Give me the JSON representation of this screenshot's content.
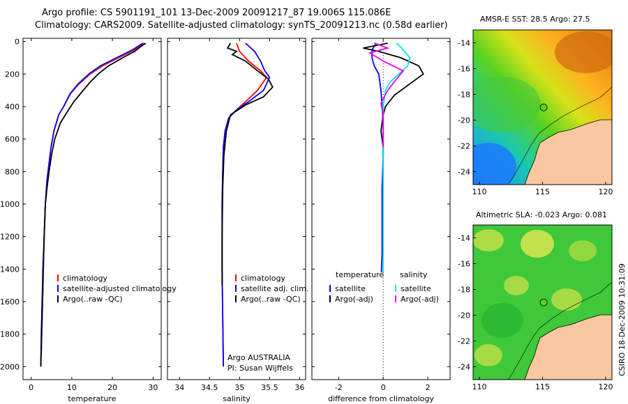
{
  "header": {
    "title_line1": "Argo profile: CS 5901191_101 13-Dec-2009 20091217_87 19.006S 115.086E",
    "title_line2": "Climatology: CARS2009. Satellite-adjusted climatology: synTS_20091213.nc (0.58d earlier)"
  },
  "stamp": "CSIRO 18-Dec-2009 10:31:09",
  "colors": {
    "climatology": "#ff0000",
    "satellite": "#0000ff",
    "argo": "#000000",
    "satellite_salinity": "#00e5ee",
    "argo_salinity": "#ee00ee",
    "land": "#f9c7a0"
  },
  "chart_data": [
    {
      "type": "line",
      "name": "temperature-profile",
      "xlabel": "temperature",
      "ylabel": "",
      "xlim": [
        -2,
        32
      ],
      "ylim": [
        2080,
        -20
      ],
      "xticks": [
        0,
        10,
        20,
        30
      ],
      "yticks": [
        0,
        200,
        400,
        600,
        800,
        1000,
        1200,
        1400,
        1600,
        1800,
        2000
      ],
      "legend": [
        "climatology",
        "satellite-adjusted climatology",
        "Argo(..raw -QC)"
      ],
      "series": [
        {
          "name": "climatology",
          "color": "#ff0000",
          "x": [
            27.8,
            25.5,
            21.5,
            17.5,
            14.5,
            11.8,
            9.7,
            8.0,
            6.8,
            5.6,
            4.9,
            4.4,
            3.9,
            3.5,
            3.2,
            3.0,
            2.8,
            2.6,
            2.5,
            2.4,
            2.4
          ],
          "y": [
            10,
            50,
            100,
            150,
            200,
            260,
            320,
            400,
            450,
            550,
            650,
            750,
            850,
            1000,
            1200,
            1400,
            1600,
            1800,
            1900,
            1950,
            2000
          ]
        },
        {
          "name": "satellite-adjusted climatology",
          "color": "#0000ff",
          "x": [
            27.5,
            25.0,
            21.0,
            17.0,
            14.2,
            11.6,
            9.6,
            8.0,
            6.8,
            5.6,
            4.9,
            4.4,
            3.9,
            3.5,
            3.2,
            3.0,
            2.8,
            2.6,
            2.5,
            2.4,
            2.4
          ],
          "y": [
            10,
            50,
            100,
            150,
            200,
            260,
            320,
            400,
            450,
            550,
            650,
            750,
            850,
            1000,
            1200,
            1400,
            1600,
            1800,
            1900,
            1950,
            2000
          ]
        },
        {
          "name": "Argo(..raw -QC)",
          "color": "#000000",
          "x": [
            28.2,
            27.0,
            25.5,
            22.5,
            19.0,
            16.5,
            14.5,
            12.5,
            10.5,
            9.2,
            7.2,
            5.8,
            5.0,
            4.4,
            3.9,
            3.5,
            3.2,
            2.9,
            2.7,
            2.5,
            2.4
          ],
          "y": [
            10,
            30,
            60,
            100,
            150,
            200,
            250,
            310,
            370,
            420,
            500,
            600,
            700,
            800,
            900,
            1000,
            1200,
            1400,
            1600,
            1800,
            2000
          ]
        }
      ]
    },
    {
      "type": "line",
      "name": "salinity-profile",
      "xlabel": "salinity",
      "ylabel": "",
      "xlim": [
        33.8,
        36.1
      ],
      "ylim": [
        2080,
        -20
      ],
      "xticks": [
        34,
        34.5,
        35,
        35.5,
        36
      ],
      "xtick_labels": [
        "34",
        "34.5",
        "35",
        "35.5",
        "36"
      ],
      "legend": [
        "climatology",
        "satellite adj. clim.",
        "Argo(..raw -QC)"
      ],
      "annotation": [
        "Argo AUSTRALIA",
        "PI: Susan Wijffels"
      ],
      "series": [
        {
          "name": "climatology",
          "color": "#ff0000",
          "x": [
            34.95,
            35.0,
            35.15,
            35.35,
            35.45,
            35.3,
            35.1,
            34.95,
            34.82,
            34.76,
            34.73,
            34.72,
            34.71,
            34.71,
            34.71,
            34.72,
            34.73
          ],
          "y": [
            10,
            60,
            120,
            180,
            220,
            300,
            370,
            420,
            470,
            550,
            650,
            800,
            1000,
            1200,
            1400,
            1700,
            2000
          ]
        },
        {
          "name": "satellite adj. clim.",
          "color": "#0000ff",
          "x": [
            35.1,
            35.25,
            35.35,
            35.42,
            35.5,
            35.4,
            35.15,
            34.95,
            34.82,
            34.76,
            34.73,
            34.72,
            34.71,
            34.71,
            34.71,
            34.72,
            34.73
          ],
          "y": [
            10,
            60,
            120,
            180,
            220,
            300,
            370,
            420,
            470,
            550,
            650,
            800,
            1000,
            1200,
            1400,
            1700,
            2000
          ]
        },
        {
          "name": "Argo(..raw -QC)",
          "color": "#000000",
          "x": [
            34.85,
            34.8,
            34.95,
            34.88,
            35.1,
            35.3,
            35.48,
            35.55,
            35.4,
            35.1,
            34.85,
            34.78,
            34.74,
            34.72,
            34.71,
            34.71
          ],
          "y": [
            10,
            40,
            60,
            80,
            120,
            180,
            230,
            280,
            340,
            390,
            450,
            550,
            700,
            900,
            1200,
            1500
          ]
        }
      ]
    },
    {
      "type": "line",
      "name": "difference-profile",
      "xlabel": "difference from climatology",
      "ylabel": "",
      "xlim": [
        -3.2,
        3.0
      ],
      "ylim": [
        2080,
        -20
      ],
      "xticks": [
        -2,
        0,
        2
      ],
      "legend_headers": [
        "temperature",
        "salinity"
      ],
      "legend": [
        "satellite",
        "Argo(-adj)",
        "satellite",
        "Argo(-adj)"
      ],
      "series": [
        {
          "name": "temperature satellite",
          "color": "#0000ff",
          "x": [
            -0.3,
            -0.5,
            -0.5,
            -0.4,
            -0.2,
            -0.1,
            -0.05,
            0.0,
            0.0,
            -0.05,
            -0.05,
            -0.05,
            -0.08
          ],
          "y": [
            10,
            50,
            100,
            150,
            200,
            300,
            400,
            500,
            700,
            900,
            1100,
            1300,
            1420
          ]
        },
        {
          "name": "temperature Argo(-adj)",
          "color": "#000000",
          "x": [
            0.2,
            -0.9,
            -0.2,
            0.8,
            1.6,
            1.8,
            1.2,
            0.5,
            0.1,
            0.0,
            -0.1,
            0.0,
            0.0
          ],
          "y": [
            10,
            40,
            60,
            100,
            150,
            200,
            260,
            330,
            400,
            450,
            550,
            650,
            700
          ]
        },
        {
          "name": "salinity satellite",
          "color": "#00e5ee",
          "x": [
            0.6,
            0.9,
            1.2,
            1.1,
            0.7,
            0.3,
            0.1,
            0.0,
            0.0,
            0.0,
            0.0,
            0.0,
            0.0
          ],
          "y": [
            10,
            50,
            100,
            150,
            200,
            250,
            300,
            400,
            600,
            800,
            1000,
            1200,
            1420
          ]
        },
        {
          "name": "salinity Argo(-adj)",
          "color": "#ee00ee",
          "x": [
            -0.4,
            0.2,
            -0.6,
            0.0,
            0.9,
            0.6,
            0.2,
            -0.1,
            0.0,
            0.0,
            0.0
          ],
          "y": [
            10,
            40,
            70,
            120,
            180,
            230,
            300,
            380,
            450,
            550,
            650
          ]
        }
      ]
    },
    {
      "type": "heatmap",
      "name": "sst-map",
      "title": "AMSR-E SST: 28.5 Argo: 27.5",
      "xlim": [
        109.5,
        120.5
      ],
      "ylim": [
        -25,
        -13
      ],
      "xticks": [
        110,
        115,
        120
      ],
      "yticks": [
        -14,
        -16,
        -18,
        -20,
        -22,
        -24
      ],
      "argo_position": {
        "lon": 115.086,
        "lat": -19.006
      }
    },
    {
      "type": "heatmap",
      "name": "sla-map",
      "title": "Altimetric SLA: -0.023 Argo: 0.081",
      "xlim": [
        109.5,
        120.5
      ],
      "ylim": [
        -25,
        -13
      ],
      "xticks": [
        110,
        115,
        120
      ],
      "yticks": [
        -14,
        -16,
        -18,
        -20,
        -22,
        -24
      ],
      "argo_position": {
        "lon": 115.086,
        "lat": -19.006
      }
    }
  ]
}
